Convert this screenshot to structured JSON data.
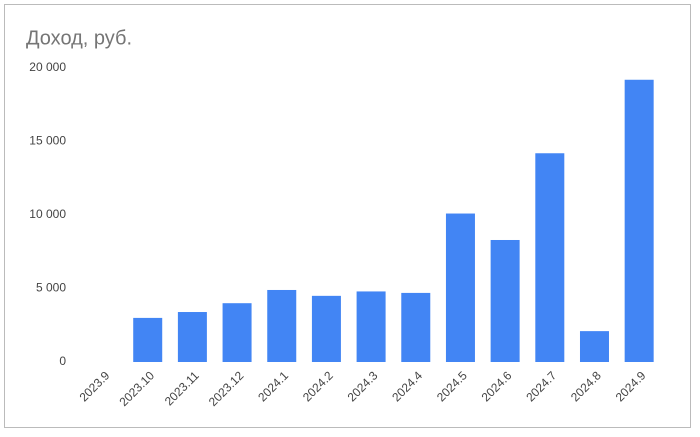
{
  "chart_data": {
    "type": "bar",
    "title": "Доход, руб.",
    "categories": [
      "2023.9",
      "2023.10",
      "2023.11",
      "2023.12",
      "2024.1",
      "2024.2",
      "2024.3",
      "2024.4",
      "2024.5",
      "2024.6",
      "2024.7",
      "2024.8",
      "2024.9"
    ],
    "values": [
      0,
      3000,
      3400,
      4000,
      4900,
      4500,
      4800,
      4700,
      10100,
      8300,
      14200,
      2100,
      19200
    ],
    "color": "#4285f4",
    "ylim": [
      0,
      20000
    ],
    "yticks": [
      0,
      {
        "value": 5000,
        "label": "5 000"
      },
      {
        "value": 10000,
        "label": "10 000"
      },
      {
        "value": 15000,
        "label": "15 000"
      },
      {
        "value": 20000,
        "label": "20 000"
      }
    ],
    "grid": false
  }
}
